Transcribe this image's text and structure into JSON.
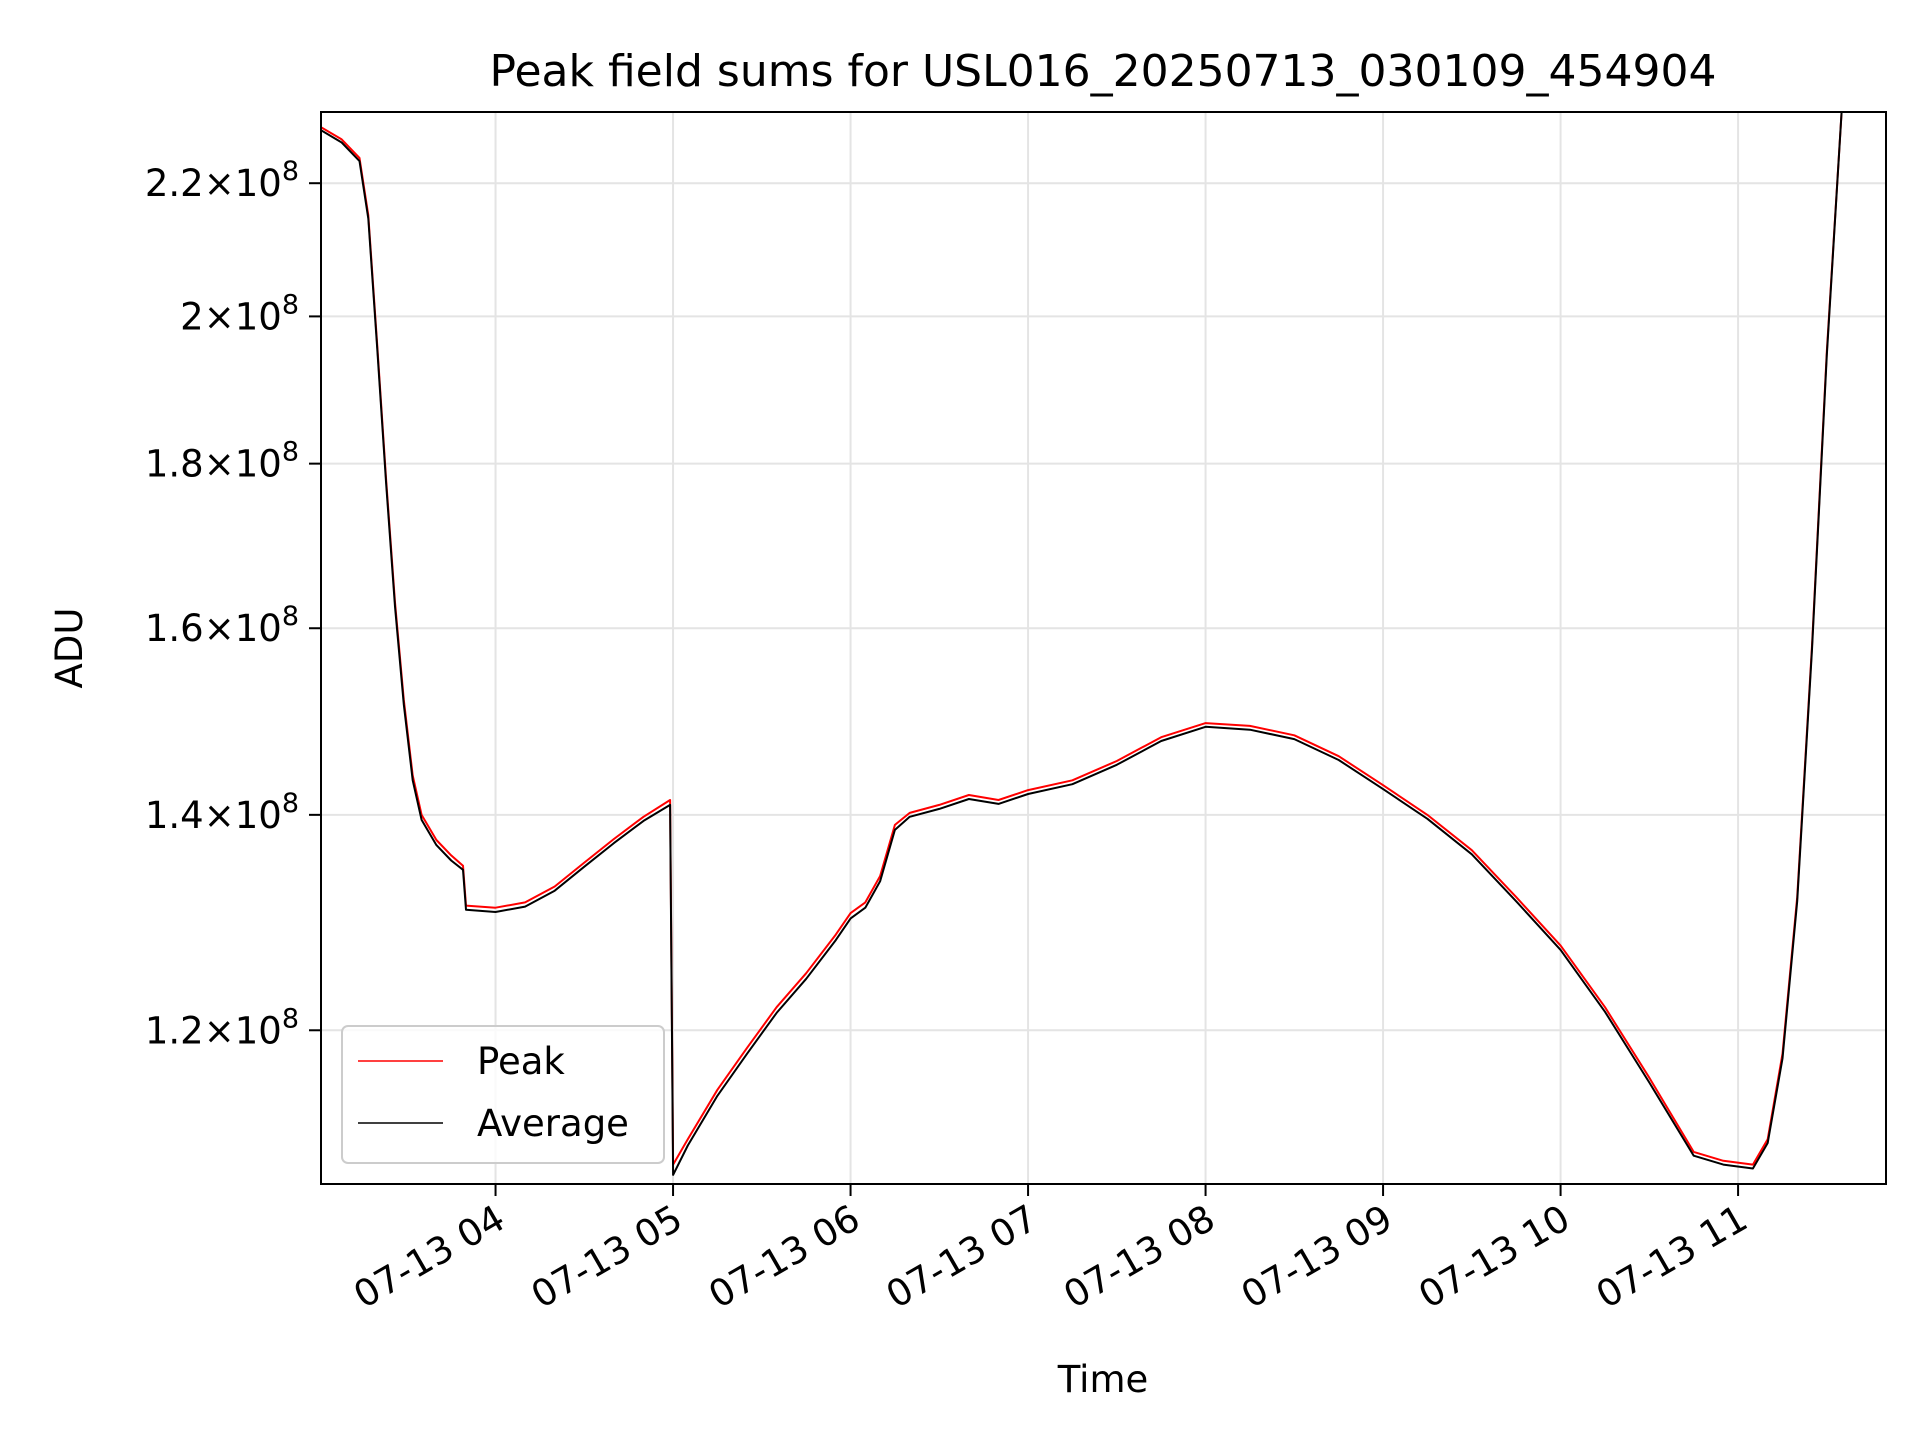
{
  "chart_data": {
    "type": "line",
    "title": "Peak field sums for USL016_20250713_030109_454904",
    "xlabel": "Time",
    "ylabel": "ADU",
    "x_axis_type": "datetime",
    "y_scale": "log",
    "xlim": [
      "2025-07-13 03:01",
      "2025-07-13 11:50"
    ],
    "ylim": [
      107500000,
      231500000
    ],
    "x_ticks": [
      {
        "value": "2025-07-13 04:00",
        "label": "07-13 04"
      },
      {
        "value": "2025-07-13 05:00",
        "label": "07-13 05"
      },
      {
        "value": "2025-07-13 06:00",
        "label": "07-13 06"
      },
      {
        "value": "2025-07-13 07:00",
        "label": "07-13 07"
      },
      {
        "value": "2025-07-13 08:00",
        "label": "07-13 08"
      },
      {
        "value": "2025-07-13 09:00",
        "label": "07-13 09"
      },
      {
        "value": "2025-07-13 10:00",
        "label": "07-13 10"
      },
      {
        "value": "2025-07-13 11:00",
        "label": "07-13 11"
      }
    ],
    "y_ticks": [
      {
        "value": 120000000,
        "mantissa": "1.2",
        "base": "10",
        "exp": "8"
      },
      {
        "value": 140000000,
        "mantissa": "1.4",
        "base": "10",
        "exp": "8"
      },
      {
        "value": 160000000,
        "mantissa": "1.6",
        "base": "10",
        "exp": "8"
      },
      {
        "value": 180000000,
        "mantissa": "1.8",
        "base": "10",
        "exp": "8"
      },
      {
        "value": 200000000,
        "mantissa": "2",
        "base": "10",
        "exp": "8"
      },
      {
        "value": 220000000,
        "mantissa": "2.2",
        "base": "10",
        "exp": "8"
      }
    ],
    "grid": true,
    "legend_position": "lower-left",
    "series": [
      {
        "name": "Peak",
        "color": "#ff0000",
        "points": [
          [
            "2025-07-13 03:01",
            229000000
          ],
          [
            "2025-07-13 03:08",
            227000000
          ],
          [
            "2025-07-13 03:14",
            224000000
          ],
          [
            "2025-07-13 03:17",
            215000000
          ],
          [
            "2025-07-13 03:20",
            196000000
          ],
          [
            "2025-07-13 03:23",
            178000000
          ],
          [
            "2025-07-13 03:26",
            163000000
          ],
          [
            "2025-07-13 03:29",
            152000000
          ],
          [
            "2025-07-13 03:32",
            144000000
          ],
          [
            "2025-07-13 03:35",
            140000000
          ],
          [
            "2025-07-13 03:40",
            137500000
          ],
          [
            "2025-07-13 03:45",
            136000000
          ],
          [
            "2025-07-13 03:49",
            135000000
          ],
          [
            "2025-07-13 03:50",
            131200000
          ],
          [
            "2025-07-13 04:00",
            131000000
          ],
          [
            "2025-07-13 04:10",
            131500000
          ],
          [
            "2025-07-13 04:20",
            133000000
          ],
          [
            "2025-07-13 04:30",
            135300000
          ],
          [
            "2025-07-13 04:40",
            137600000
          ],
          [
            "2025-07-13 04:50",
            139800000
          ],
          [
            "2025-07-13 04:59",
            141500000
          ],
          [
            "2025-07-13 05:00",
            109000000
          ],
          [
            "2025-07-13 05:05",
            111000000
          ],
          [
            "2025-07-13 05:15",
            115000000
          ],
          [
            "2025-07-13 05:25",
            118500000
          ],
          [
            "2025-07-13 05:35",
            122000000
          ],
          [
            "2025-07-13 05:45",
            125000000
          ],
          [
            "2025-07-13 05:55",
            128500000
          ],
          [
            "2025-07-13 06:00",
            130500000
          ],
          [
            "2025-07-13 06:05",
            131500000
          ],
          [
            "2025-07-13 06:10",
            134000000
          ],
          [
            "2025-07-13 06:15",
            139000000
          ],
          [
            "2025-07-13 06:20",
            140200000
          ],
          [
            "2025-07-13 06:30",
            141000000
          ],
          [
            "2025-07-13 06:40",
            142000000
          ],
          [
            "2025-07-13 06:50",
            141500000
          ],
          [
            "2025-07-13 07:00",
            142500000
          ],
          [
            "2025-07-13 07:15",
            143500000
          ],
          [
            "2025-07-13 07:30",
            145500000
          ],
          [
            "2025-07-13 07:45",
            148000000
          ],
          [
            "2025-07-13 08:00",
            149500000
          ],
          [
            "2025-07-13 08:15",
            149200000
          ],
          [
            "2025-07-13 08:30",
            148200000
          ],
          [
            "2025-07-13 08:45",
            146000000
          ],
          [
            "2025-07-13 09:00",
            143000000
          ],
          [
            "2025-07-13 09:15",
            140000000
          ],
          [
            "2025-07-13 09:30",
            136500000
          ],
          [
            "2025-07-13 09:45",
            132000000
          ],
          [
            "2025-07-13 10:00",
            127500000
          ],
          [
            "2025-07-13 10:15",
            122000000
          ],
          [
            "2025-07-13 10:30",
            116000000
          ],
          [
            "2025-07-13 10:45",
            110000000
          ],
          [
            "2025-07-13 10:55",
            109300000
          ],
          [
            "2025-07-13 11:05",
            109000000
          ],
          [
            "2025-07-13 11:10",
            111000000
          ],
          [
            "2025-07-13 11:15",
            118000000
          ],
          [
            "2025-07-13 11:20",
            132000000
          ],
          [
            "2025-07-13 11:25",
            158000000
          ],
          [
            "2025-07-13 11:30",
            195000000
          ],
          [
            "2025-07-13 11:35",
            231500000
          ]
        ]
      },
      {
        "name": "Average",
        "color": "#000000",
        "points": [
          [
            "2025-07-13 03:01",
            228500000
          ],
          [
            "2025-07-13 03:08",
            226500000
          ],
          [
            "2025-07-13 03:14",
            223500000
          ],
          [
            "2025-07-13 03:17",
            214500000
          ],
          [
            "2025-07-13 03:20",
            195500000
          ],
          [
            "2025-07-13 03:23",
            177500000
          ],
          [
            "2025-07-13 03:26",
            162500000
          ],
          [
            "2025-07-13 03:29",
            151500000
          ],
          [
            "2025-07-13 03:32",
            143500000
          ],
          [
            "2025-07-13 03:35",
            139500000
          ],
          [
            "2025-07-13 03:40",
            137000000
          ],
          [
            "2025-07-13 03:45",
            135500000
          ],
          [
            "2025-07-13 03:49",
            134600000
          ],
          [
            "2025-07-13 03:50",
            130800000
          ],
          [
            "2025-07-13 04:00",
            130600000
          ],
          [
            "2025-07-13 04:10",
            131100000
          ],
          [
            "2025-07-13 04:20",
            132600000
          ],
          [
            "2025-07-13 04:30",
            134900000
          ],
          [
            "2025-07-13 04:40",
            137200000
          ],
          [
            "2025-07-13 04:50",
            139400000
          ],
          [
            "2025-07-13 04:59",
            141000000
          ],
          [
            "2025-07-13 05:00",
            108200000
          ],
          [
            "2025-07-13 05:05",
            110500000
          ],
          [
            "2025-07-13 05:15",
            114500000
          ],
          [
            "2025-07-13 05:25",
            118000000
          ],
          [
            "2025-07-13 05:35",
            121500000
          ],
          [
            "2025-07-13 05:45",
            124500000
          ],
          [
            "2025-07-13 05:55",
            128000000
          ],
          [
            "2025-07-13 06:00",
            130000000
          ],
          [
            "2025-07-13 06:05",
            131000000
          ],
          [
            "2025-07-13 06:10",
            133500000
          ],
          [
            "2025-07-13 06:15",
            138500000
          ],
          [
            "2025-07-13 06:20",
            139800000
          ],
          [
            "2025-07-13 06:30",
            140600000
          ],
          [
            "2025-07-13 06:40",
            141600000
          ],
          [
            "2025-07-13 06:50",
            141100000
          ],
          [
            "2025-07-13 07:00",
            142100000
          ],
          [
            "2025-07-13 07:15",
            143100000
          ],
          [
            "2025-07-13 07:30",
            145100000
          ],
          [
            "2025-07-13 07:45",
            147600000
          ],
          [
            "2025-07-13 08:00",
            149100000
          ],
          [
            "2025-07-13 08:15",
            148800000
          ],
          [
            "2025-07-13 08:30",
            147800000
          ],
          [
            "2025-07-13 08:45",
            145600000
          ],
          [
            "2025-07-13 09:00",
            142600000
          ],
          [
            "2025-07-13 09:15",
            139600000
          ],
          [
            "2025-07-13 09:30",
            136100000
          ],
          [
            "2025-07-13 09:45",
            131600000
          ],
          [
            "2025-07-13 10:00",
            127100000
          ],
          [
            "2025-07-13 10:15",
            121600000
          ],
          [
            "2025-07-13 10:30",
            115600000
          ],
          [
            "2025-07-13 10:45",
            109700000
          ],
          [
            "2025-07-13 10:55",
            109000000
          ],
          [
            "2025-07-13 11:05",
            108700000
          ],
          [
            "2025-07-13 11:10",
            110700000
          ],
          [
            "2025-07-13 11:15",
            117600000
          ],
          [
            "2025-07-13 11:20",
            131600000
          ],
          [
            "2025-07-13 11:25",
            157600000
          ],
          [
            "2025-07-13 11:30",
            194500000
          ],
          [
            "2025-07-13 11:35",
            231500000
          ]
        ]
      }
    ]
  }
}
